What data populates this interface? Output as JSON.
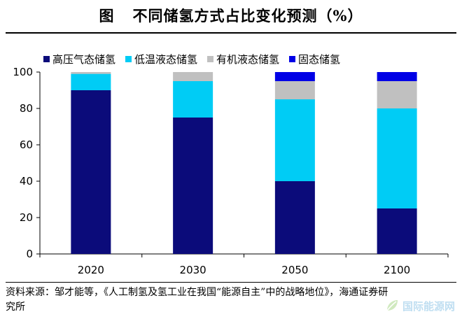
{
  "header": {
    "prefix": "图",
    "title": "不同储氢方式占比变化预测（%）"
  },
  "chart_data": {
    "type": "bar",
    "stacked": true,
    "categories": [
      "2020",
      "2030",
      "2050",
      "2100"
    ],
    "series": [
      {
        "name": "高压气态储氢",
        "color": "#0b0b7a",
        "values": [
          90,
          75,
          40,
          25
        ]
      },
      {
        "name": "低温液态储氢",
        "color": "#00ccf5",
        "values": [
          9,
          20,
          45,
          55
        ]
      },
      {
        "name": "有机液态储氢",
        "color": "#c0c0c0",
        "values": [
          1,
          5,
          10,
          15
        ]
      },
      {
        "name": "固态储氢",
        "color": "#0000e6",
        "values": [
          0,
          0,
          5,
          5
        ]
      }
    ],
    "ylim": [
      0,
      100
    ],
    "yticks": [
      0,
      20,
      40,
      60,
      80,
      100
    ],
    "grid": false,
    "legend": "top"
  },
  "footer": {
    "source": "资料来源：邹才能等，《人工制氢及氢工业在我国“能源自主”中的战略地位》，海通证券研究所"
  },
  "watermark": {
    "text": "国际能源网",
    "icon": "leaf-logo-icon"
  }
}
